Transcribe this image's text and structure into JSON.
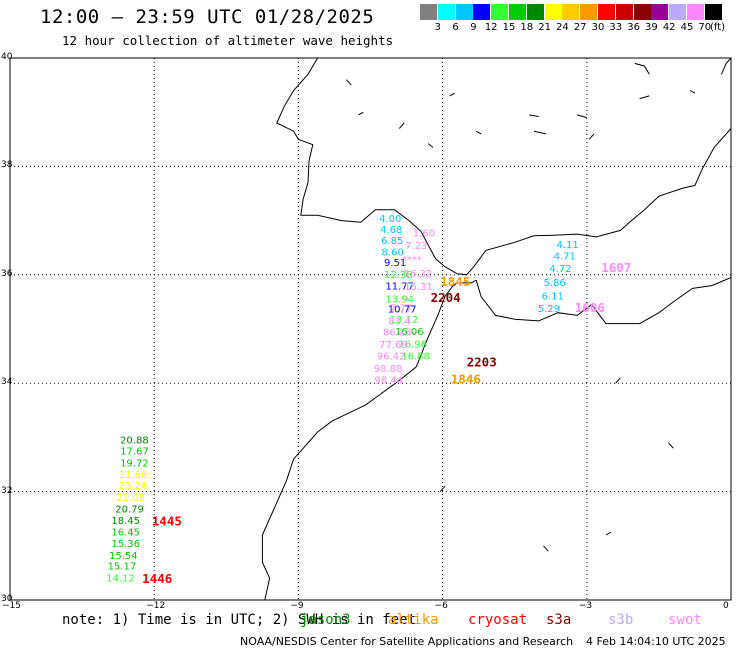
{
  "title": "12:00 – 23:59 UTC 01/28/2025",
  "subtitle": "12 hour collection of altimeter wave heights",
  "colorbar": {
    "colors": [
      "#808080",
      "#00ffff",
      "#00c8ff",
      "#0000ff",
      "#33ff33",
      "#00cc00",
      "#008800",
      "#ffff00",
      "#ffcc00",
      "#ff9900",
      "#ff0000",
      "#cc0000",
      "#880000",
      "#990099",
      "#bbaaff",
      "#ff88ff",
      "#000000"
    ],
    "labels": [
      "3",
      "6",
      "9",
      "12",
      "15",
      "18",
      "21",
      "24",
      "27",
      "30",
      "33",
      "36",
      "39",
      "42",
      "45",
      "70"
    ],
    "unit": "(ft)"
  },
  "axes": {
    "lat_labels": [
      "40",
      "38",
      "36",
      "34",
      "32",
      "30"
    ],
    "lon_labels": [
      "−15",
      "−12",
      "−9",
      "−6",
      "−3",
      "0"
    ]
  },
  "map": {
    "lon_range": [
      -15,
      0
    ],
    "lat_range": [
      30,
      40
    ],
    "grid": "dotted",
    "coastline_color": "#000000"
  },
  "observations": [
    {
      "text": "4.00",
      "color": "#00c8ff",
      "lon": -7.32,
      "lat": 36.97
    },
    {
      "text": "4.68",
      "color": "#00c8ff",
      "lon": -7.3,
      "lat": 36.77
    },
    {
      "text": "6.85",
      "color": "#00c8ff",
      "lon": -7.28,
      "lat": 36.57
    },
    {
      "text": "8.60",
      "color": "#00c8ff",
      "lon": -7.27,
      "lat": 36.36
    },
    {
      "text": "9.51",
      "color": "#0000ff",
      "lon": -7.22,
      "lat": 36.16
    },
    {
      "text": "12.38",
      "color": "#33ff33",
      "lon": -7.22,
      "lat": 35.94
    },
    {
      "text": "11.77",
      "color": "#0000ff",
      "lon": -7.19,
      "lat": 35.73
    },
    {
      "text": "13.94",
      "color": "#33ff33",
      "lon": -7.19,
      "lat": 35.49
    },
    {
      "text": "10.77",
      "color": "#0000ff",
      "lon": -7.14,
      "lat": 35.3
    },
    {
      "text": "13.12",
      "color": "#33ff33",
      "lon": -7.1,
      "lat": 35.11
    },
    {
      "text": "16.06",
      "color": "#00cc00",
      "lon": -6.99,
      "lat": 34.89
    },
    {
      "text": "16.96",
      "color": "#33ff33",
      "lon": -6.92,
      "lat": 34.66
    },
    {
      "text": "16.88",
      "color": "#33ff33",
      "lon": -6.86,
      "lat": 34.44
    },
    {
      "text": "1.60",
      "color": "#ff88ff",
      "lon": -6.62,
      "lat": 36.71
    },
    {
      "text": "7.23",
      "color": "#ff88ff",
      "lon": -6.78,
      "lat": 36.48
    },
    {
      "text": "****",
      "color": "#ff88ff",
      "lon": -6.85,
      "lat": 36.22
    },
    {
      "text": "16.32",
      "color": "#ff88ff",
      "lon": -6.81,
      "lat": 35.96
    },
    {
      "text": "15.31",
      "color": "#ff88ff",
      "lon": -6.8,
      "lat": 35.72
    },
    {
      "text": "7.77",
      "color": "#ff88ff",
      "lon": -7.1,
      "lat": 35.32
    },
    {
      "text": "83.4",
      "color": "#ff88ff",
      "lon": -7.13,
      "lat": 35.08
    },
    {
      "text": "86.23",
      "color": "#ff88ff",
      "lon": -7.24,
      "lat": 34.88
    },
    {
      "text": "77.69",
      "color": "#ff88ff",
      "lon": -7.32,
      "lat": 34.65
    },
    {
      "text": "96.42",
      "color": "#ff88ff",
      "lon": -7.37,
      "lat": 34.44
    },
    {
      "text": "98.88",
      "color": "#ff88ff",
      "lon": -7.43,
      "lat": 34.21
    },
    {
      "text": "98.44",
      "color": "#ff88ff",
      "lon": -7.42,
      "lat": 33.99
    },
    {
      "text": "4.11",
      "color": "#00c8ff",
      "lon": -3.63,
      "lat": 36.49
    },
    {
      "text": "4.71",
      "color": "#00c8ff",
      "lon": -3.69,
      "lat": 36.28
    },
    {
      "text": "4.72",
      "color": "#00c8ff",
      "lon": -3.78,
      "lat": 36.05
    },
    {
      "text": "5.86",
      "color": "#00c8ff",
      "lon": -3.9,
      "lat": 35.79
    },
    {
      "text": "6.11",
      "color": "#00c8ff",
      "lon": -3.94,
      "lat": 35.54
    },
    {
      "text": "5.29",
      "color": "#00c8ff",
      "lon": -4.02,
      "lat": 35.31
    },
    {
      "text": "20.88",
      "color": "#008800",
      "lon": -12.71,
      "lat": 32.89
    },
    {
      "text": "17.67",
      "color": "#00cc00",
      "lon": -12.71,
      "lat": 32.68
    },
    {
      "text": "19.72",
      "color": "#00cc00",
      "lon": -12.71,
      "lat": 32.46
    },
    {
      "text": "31.66",
      "color": "#ffff00",
      "lon": -12.74,
      "lat": 32.25
    },
    {
      "text": "23.26",
      "color": "#ffff00",
      "lon": -12.74,
      "lat": 32.05
    },
    {
      "text": "21.08",
      "color": "#ffff00",
      "lon": -12.79,
      "lat": 31.83
    },
    {
      "text": "20.79",
      "color": "#008800",
      "lon": -12.81,
      "lat": 31.61
    },
    {
      "text": "18.45",
      "color": "#008800",
      "lon": -12.89,
      "lat": 31.4
    },
    {
      "text": "16.45",
      "color": "#00cc00",
      "lon": -12.89,
      "lat": 31.19
    },
    {
      "text": "15.36",
      "color": "#00cc00",
      "lon": -12.89,
      "lat": 30.98
    },
    {
      "text": "15.54",
      "color": "#00cc00",
      "lon": -12.94,
      "lat": 30.76
    },
    {
      "text": "15.17",
      "color": "#00cc00",
      "lon": -12.97,
      "lat": 30.56
    },
    {
      "text": "14.12",
      "color": "#33ff33",
      "lon": -13.0,
      "lat": 30.34
    }
  ],
  "time_labels": [
    {
      "text": "1845",
      "color": "#ff9900",
      "lon": -6.05,
      "lat": 35.79,
      "big": true
    },
    {
      "text": "2204",
      "color": "#880000",
      "lon": -6.25,
      "lat": 35.5,
      "big": true
    },
    {
      "text": "2203",
      "color": "#880000",
      "lon": -5.5,
      "lat": 34.31,
      "big": true
    },
    {
      "text": "1846",
      "color": "#ff9900",
      "lon": -5.83,
      "lat": 33.99,
      "big": true
    },
    {
      "text": "1607",
      "color": "#ff88ff",
      "lon": -2.7,
      "lat": 36.05,
      "big": true
    },
    {
      "text": "1606",
      "color": "#ff88ff",
      "lon": -3.25,
      "lat": 35.31,
      "big": true
    },
    {
      "text": "1445",
      "color": "#ff0000",
      "lon": -12.05,
      "lat": 31.37,
      "big": true
    },
    {
      "text": "1446",
      "color": "#ff0000",
      "lon": -12.25,
      "lat": 30.31,
      "big": true
    }
  ],
  "footer": {
    "note": "note: 1) Time is in UTC; 2) SWH is in feet",
    "satellites": [
      {
        "name": "jason3",
        "color": "#008800"
      },
      {
        "name": "altika",
        "color": "#ff9900"
      },
      {
        "name": "cryosat",
        "color": "#ff0000"
      },
      {
        "name": "s3a",
        "color": "#880000"
      },
      {
        "name": "s3b",
        "color": "#bbaaff"
      },
      {
        "name": "swot",
        "color": "#ff88ff"
      }
    ],
    "credit": "NOAA/NESDIS Center for Satellite Applications and Research",
    "timestamp": "4 Feb 14:04:10 UTC 2025"
  }
}
